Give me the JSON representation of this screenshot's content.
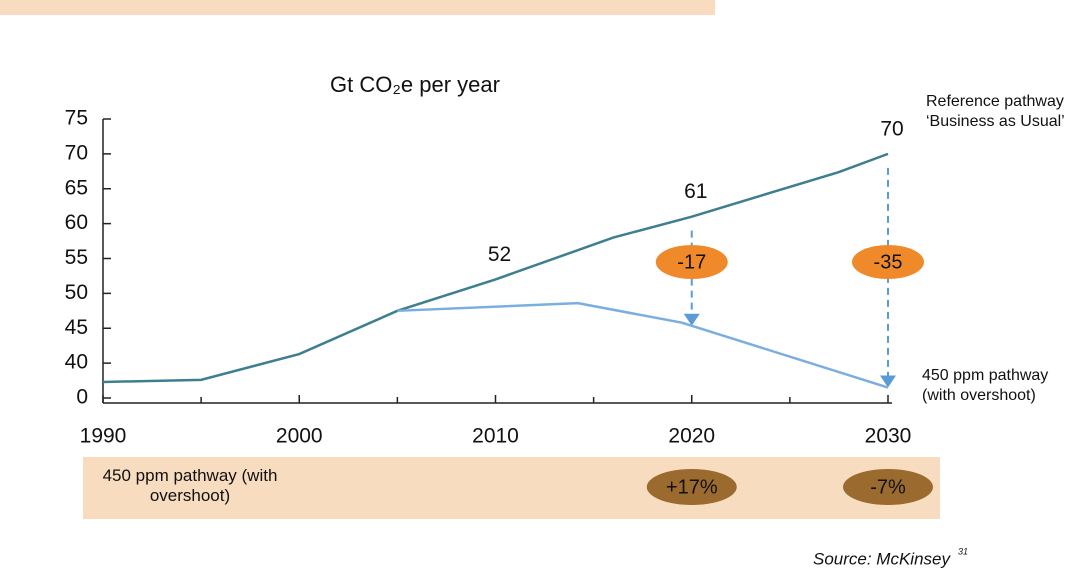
{
  "chart_data": {
    "type": "line",
    "title": "Gt CO₂e per year",
    "xlim": [
      1990,
      2030
    ],
    "xticks": [
      1990,
      2000,
      2010,
      2020,
      2030
    ],
    "xminorticks": [
      1995,
      2005,
      2015,
      2025
    ],
    "ylim": [
      35,
      75
    ],
    "yticks": [
      0,
      40,
      45,
      50,
      55,
      60,
      65,
      70,
      75
    ],
    "axis_break": true,
    "series": [
      {
        "name": "Reference pathway ‘Business as Usual’",
        "color": "#3d7f8f",
        "x": [
          1990,
          1995,
          2000,
          2005,
          2010,
          2016,
          2020,
          2027.5,
          2030
        ],
        "values": [
          37.3,
          37.6,
          41.3,
          47.5,
          52,
          58,
          61,
          67.4,
          70
        ],
        "value_labels": [
          null,
          null,
          null,
          null,
          "52",
          null,
          "61",
          null,
          "70"
        ]
      },
      {
        "name": "450 ppm pathway (with overshoot)",
        "color": "#7aaee0",
        "x": [
          2005,
          2014.2,
          2019.5,
          2030
        ],
        "values": [
          47.5,
          48.6,
          45.8,
          36.5
        ]
      }
    ],
    "reductions": [
      {
        "x": 2020,
        "value": -17
      },
      {
        "x": 2030,
        "value": -35
      }
    ],
    "band_label": "450 ppm pathway (with overshoot)",
    "changes": [
      {
        "x": 2020,
        "label": "+17%"
      },
      {
        "x": 2030,
        "label": "-7%"
      }
    ],
    "source": "Source: McKinsey",
    "source_ref": "31"
  }
}
